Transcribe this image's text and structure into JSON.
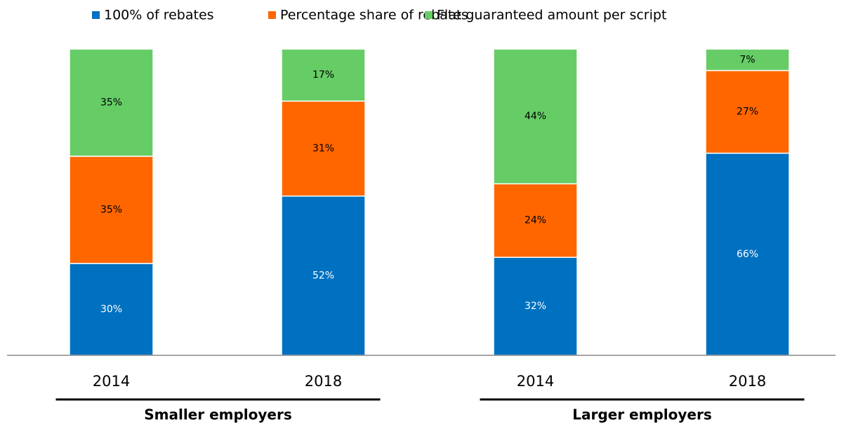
{
  "chart_data": {
    "type": "stacked_bar",
    "categories": [
      "2014",
      "2018",
      "2014",
      "2018"
    ],
    "groups": [
      {
        "label": "Smaller employers",
        "categories": [
          0,
          1
        ]
      },
      {
        "label": "Larger employers",
        "categories": [
          2,
          3
        ]
      }
    ],
    "series": [
      {
        "name": "100% of rebates",
        "color": "#0070c0",
        "label_color": "#ffffff",
        "values": [
          30,
          52,
          32,
          66
        ],
        "value_labels": [
          "30%",
          "52%",
          "32%",
          "66%"
        ]
      },
      {
        "name": "Percentage share of rebates",
        "color": "#ff6600",
        "label_color": "#000000",
        "values": [
          35,
          31,
          24,
          27
        ],
        "value_labels": [
          "35%",
          "31%",
          "24%",
          "27%"
        ]
      },
      {
        "name": "Flat guaranteed amount per script",
        "color": "#66cc66",
        "label_color": "#000000",
        "values": [
          35,
          17,
          44,
          7
        ],
        "value_labels": [
          "35%",
          "17%",
          "44%",
          "7%"
        ]
      }
    ],
    "ylim": [
      0,
      100
    ],
    "legend": "top"
  }
}
